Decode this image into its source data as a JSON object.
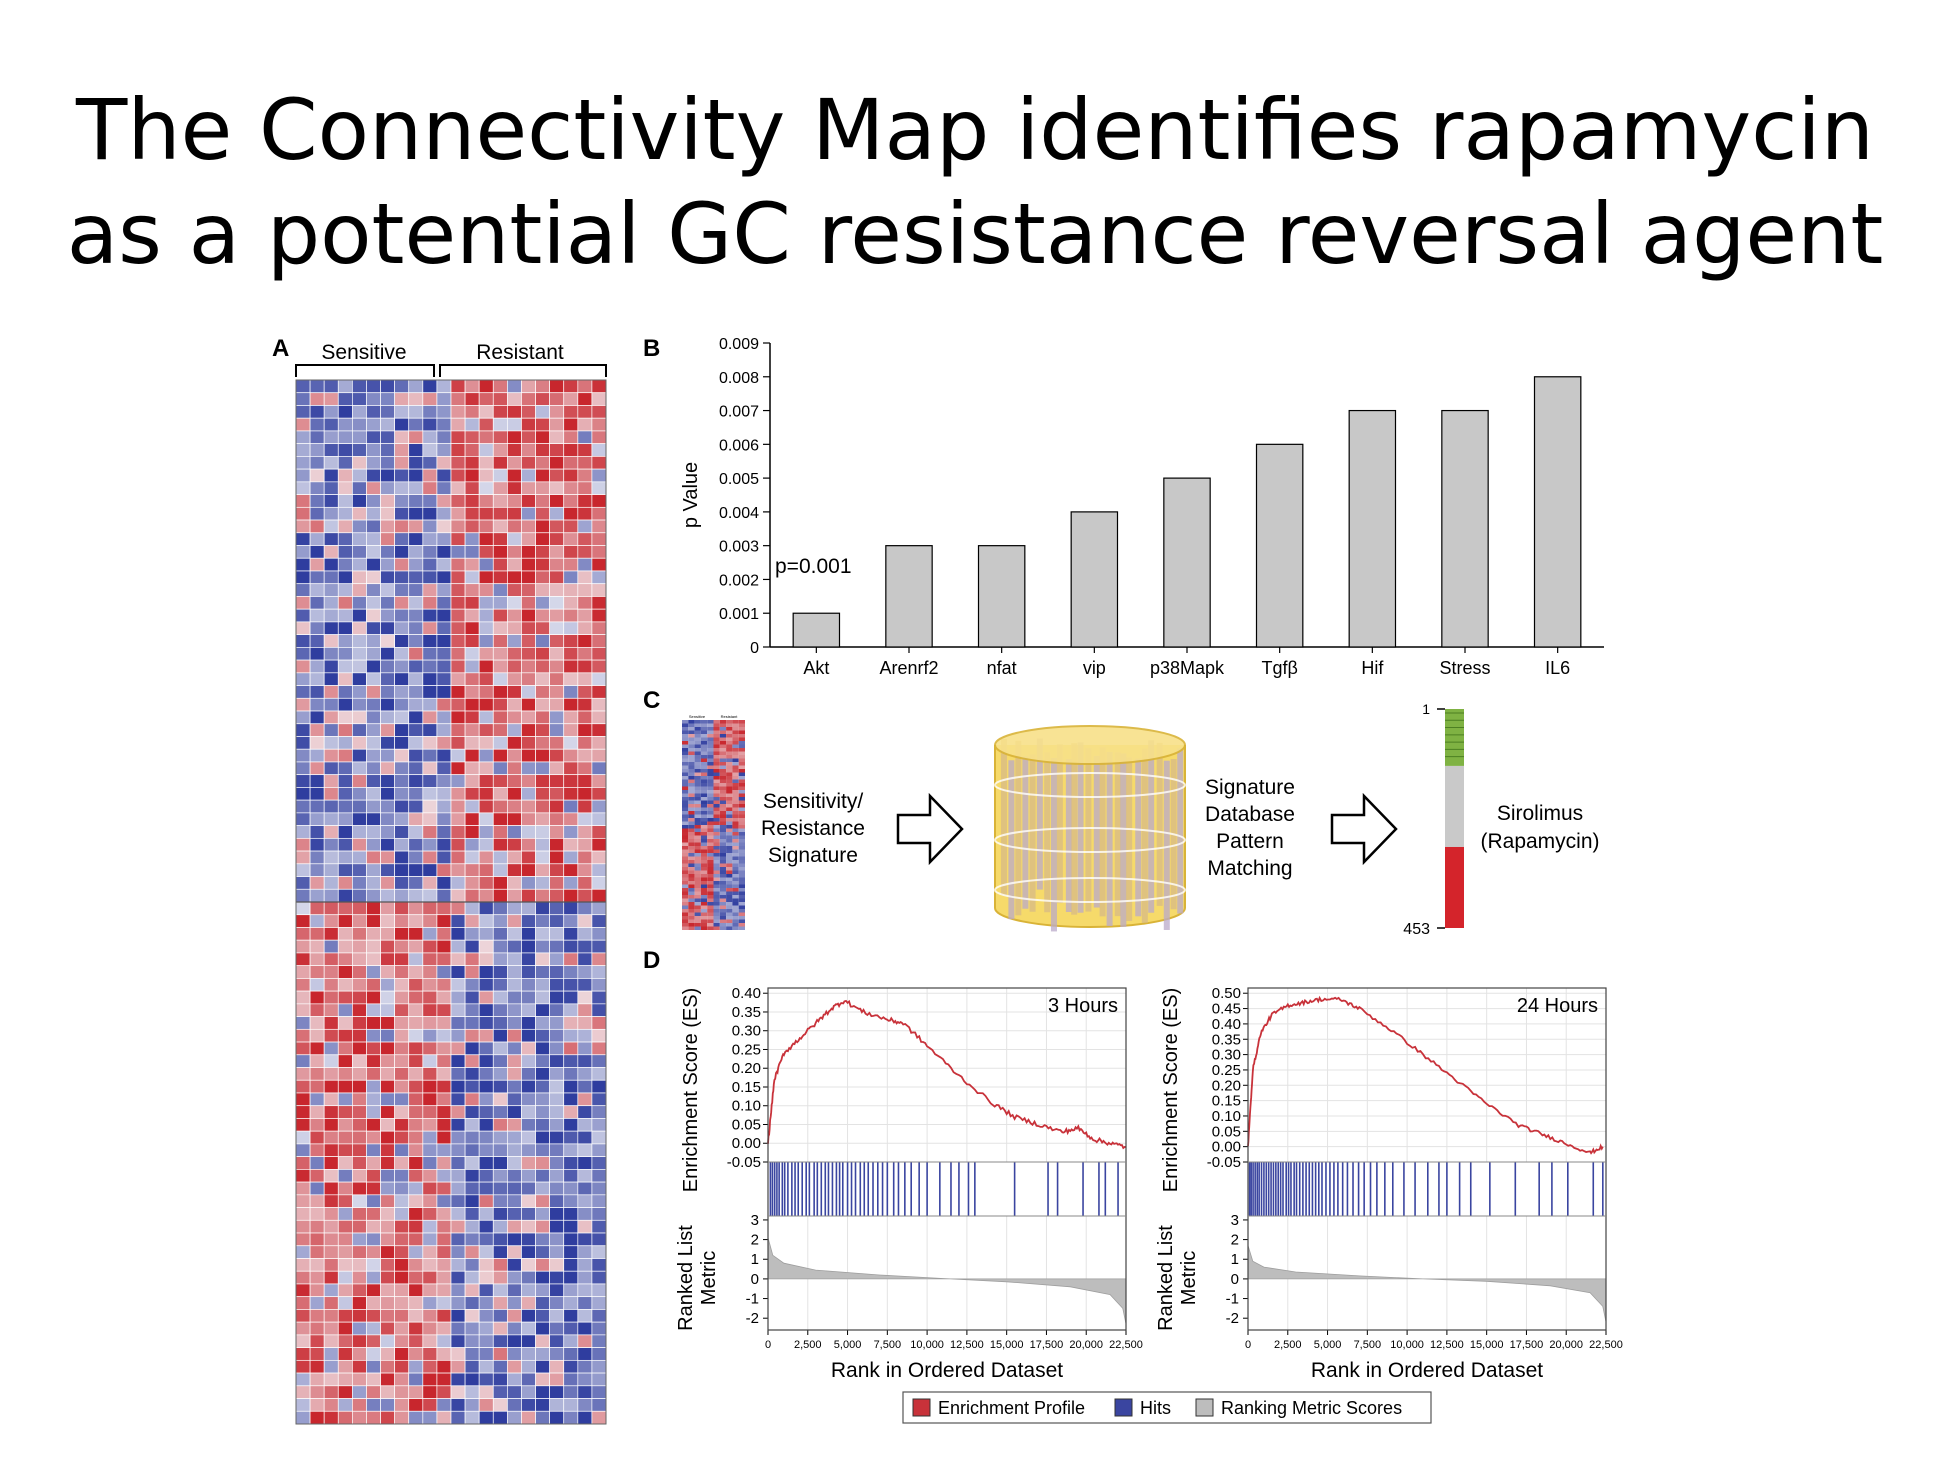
{
  "slide": {
    "title_line1": "The Connectivity Map identifies rapamycin",
    "title_line2": "as a potential GC resistance reversal agent"
  },
  "panel_labels": {
    "a": "A",
    "b": "B",
    "c": "C",
    "d": "D"
  },
  "colors": {
    "heat_blue": "#2f3d9f",
    "heat_red": "#c8262d",
    "heat_white": "#f3f3f7",
    "bar_fill": "#c8c8c8",
    "es_line": "#c8323a",
    "hits": "#3a45a0",
    "metric": "#bdbdbd",
    "cmap_green": "#7fb243",
    "cmap_gray": "#c9c9c9",
    "cmap_red": "#d4242b"
  },
  "heatmap": {
    "group_sensitive": "Sensitive",
    "group_resistant": "Resistant",
    "columns_per_group": 11,
    "rows_top_block": 41,
    "rows_bottom_block": 41
  },
  "cmap_diagram": {
    "input_label_lines": [
      "Sensitivity/",
      "Resistance",
      "Signature"
    ],
    "database_label_lines": [
      "Signature",
      "Database",
      "Pattern",
      "Matching"
    ],
    "rank_top": "1",
    "rank_bottom": "453",
    "result_label_lines": [
      "Sirolimus",
      "(Rapamycin)"
    ],
    "mini_heatmap_labels": [
      "Sensitive",
      "Resistant"
    ],
    "rank_segments": [
      {
        "name": "positive",
        "fraction": 0.26,
        "color": "green"
      },
      {
        "name": "neutral",
        "fraction": 0.37,
        "color": "gray"
      },
      {
        "name": "negative",
        "fraction": 0.37,
        "color": "red"
      }
    ]
  },
  "gsea_common": {
    "es_ylabel": "Enrichment Score (ES)",
    "metric_ylabel_lines": [
      "Ranked List",
      "Metric"
    ],
    "xlabel": "Rank in Ordered Dataset",
    "x_ticks": [
      "0",
      "2,500",
      "5,000",
      "7,500",
      "10,000",
      "12,500",
      "15,000",
      "17,500",
      "20,000",
      "22,500"
    ],
    "metric_ticks": [
      "3",
      "2",
      "1",
      "0",
      "-1",
      "-2"
    ],
    "legend": [
      "Enrichment Profile",
      "Hits",
      "Ranking Metric Scores"
    ]
  },
  "chart_data": [
    {
      "type": "bar",
      "categories": [
        "Akt",
        "Arenrf2",
        "nfat",
        "vip",
        "p38Mapk",
        "Tgfβ",
        "Hif",
        "Stress",
        "IL6"
      ],
      "values": [
        0.001,
        0.003,
        0.003,
        0.004,
        0.005,
        0.006,
        0.007,
        0.007,
        0.008
      ],
      "xlabel": "",
      "ylabel": "p Value",
      "ylim": [
        0,
        0.009
      ],
      "y_ticks": [
        "0",
        "0.001",
        "0.002",
        "0.003",
        "0.004",
        "0.005",
        "0.006",
        "0.007",
        "0.008",
        "0.009"
      ],
      "annotation": "p=0.001",
      "grid": false
    },
    {
      "type": "line",
      "title": "3 Hours",
      "xlim": [
        0,
        22500
      ],
      "ylim": [
        -0.05,
        0.4
      ],
      "y_ticks": [
        "0.40",
        "0.35",
        "0.30",
        "0.25",
        "0.20",
        "0.15",
        "0.10",
        "0.05",
        "0.00",
        "-0.05"
      ],
      "es_points": [
        [
          0,
          0.0
        ],
        [
          400,
          0.17
        ],
        [
          1000,
          0.24
        ],
        [
          2000,
          0.28
        ],
        [
          3000,
          0.32
        ],
        [
          4000,
          0.36
        ],
        [
          4800,
          0.38
        ],
        [
          6000,
          0.35
        ],
        [
          7500,
          0.33
        ],
        [
          8500,
          0.32
        ],
        [
          10000,
          0.26
        ],
        [
          12000,
          0.18
        ],
        [
          14000,
          0.11
        ],
        [
          15500,
          0.07
        ],
        [
          17000,
          0.05
        ],
        [
          18500,
          0.03
        ],
        [
          19500,
          0.04
        ],
        [
          20500,
          0.01
        ],
        [
          21500,
          0.0
        ],
        [
          22500,
          -0.01
        ]
      ],
      "hits": [
        150,
        280,
        420,
        560,
        700,
        900,
        1050,
        1250,
        1500,
        1700,
        1900,
        2150,
        2400,
        2600,
        2900,
        3100,
        3350,
        3600,
        3800,
        4050,
        4300,
        4500,
        4700,
        5000,
        5250,
        5500,
        5800,
        6050,
        6300,
        6600,
        6900,
        7200,
        7500,
        7900,
        8200,
        8600,
        9000,
        9500,
        10000,
        10800,
        11500,
        12000,
        12600,
        13000,
        15500,
        17600,
        18200,
        19800,
        20800,
        21200,
        22000
      ],
      "metric_points": [
        [
          0,
          2.1
        ],
        [
          300,
          1.2
        ],
        [
          1000,
          0.8
        ],
        [
          3000,
          0.45
        ],
        [
          7000,
          0.2
        ],
        [
          11000,
          0.02
        ],
        [
          15000,
          -0.15
        ],
        [
          19000,
          -0.4
        ],
        [
          21500,
          -0.8
        ],
        [
          22300,
          -1.5
        ],
        [
          22500,
          -2.3
        ]
      ]
    },
    {
      "type": "line",
      "title": "24 Hours",
      "xlim": [
        0,
        22500
      ],
      "ylim": [
        -0.05,
        0.5
      ],
      "y_ticks": [
        "0.50",
        "0.45",
        "0.40",
        "0.35",
        "0.30",
        "0.25",
        "0.20",
        "0.15",
        "0.10",
        "0.05",
        "0.00",
        "-0.05"
      ],
      "es_points": [
        [
          0,
          0.0
        ],
        [
          300,
          0.25
        ],
        [
          800,
          0.37
        ],
        [
          1500,
          0.43
        ],
        [
          2500,
          0.46
        ],
        [
          3500,
          0.47
        ],
        [
          4500,
          0.48
        ],
        [
          5800,
          0.48
        ],
        [
          7000,
          0.45
        ],
        [
          9000,
          0.38
        ],
        [
          11000,
          0.3
        ],
        [
          13000,
          0.22
        ],
        [
          15000,
          0.14
        ],
        [
          17000,
          0.07
        ],
        [
          18500,
          0.04
        ],
        [
          20000,
          0.01
        ],
        [
          21500,
          -0.02
        ],
        [
          22300,
          0.0
        ]
      ],
      "hits": [
        100,
        200,
        320,
        450,
        580,
        700,
        850,
        1000,
        1150,
        1300,
        1450,
        1600,
        1750,
        1900,
        2050,
        2200,
        2400,
        2550,
        2700,
        2900,
        3050,
        3250,
        3450,
        3650,
        3850,
        4050,
        4250,
        4450,
        4650,
        4900,
        5150,
        5400,
        5650,
        5950,
        6250,
        6600,
        6950,
        7300,
        7700,
        8100,
        8600,
        9100,
        9800,
        10500,
        11300,
        12000,
        12500,
        13300,
        14000,
        15200,
        16800,
        18300,
        19100,
        20100,
        21700,
        22300
      ],
      "metric_points": [
        [
          0,
          1.7
        ],
        [
          300,
          0.9
        ],
        [
          1000,
          0.6
        ],
        [
          3000,
          0.35
        ],
        [
          7000,
          0.15
        ],
        [
          11000,
          0.0
        ],
        [
          15000,
          -0.12
        ],
        [
          19000,
          -0.35
        ],
        [
          21500,
          -0.7
        ],
        [
          22300,
          -1.4
        ],
        [
          22500,
          -2.2
        ]
      ]
    }
  ]
}
